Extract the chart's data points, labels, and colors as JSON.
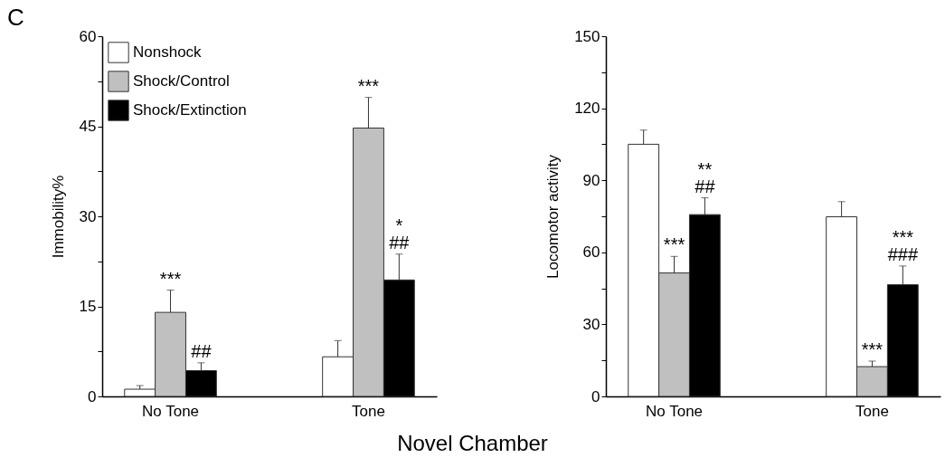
{
  "chart_data": [
    {
      "type": "bar",
      "xlabel": "Novel Chamber",
      "ylabel": "Immobility%",
      "categories": [
        "No Tone",
        "Tone"
      ],
      "ylim": [
        0,
        60
      ],
      "yticks": [
        0,
        {
          "value": 7.5,
          "label": null
        },
        15,
        {
          "value": 22.5,
          "label": null
        },
        30,
        {
          "value": 37.5,
          "label": null
        },
        45,
        {
          "value": 52.5,
          "label": null
        },
        60
      ],
      "legend": "top left",
      "series": [
        {
          "name": "Nonshock",
          "color": "#ffffff",
          "values": [
            1.2,
            6.6
          ],
          "errors": [
            0.6,
            2.7
          ]
        },
        {
          "name": "Shock/Control",
          "color": "#c0c0c0",
          "values": [
            14.0,
            44.7
          ],
          "errors": [
            3.7,
            5.1
          ],
          "value_labels": [
            "***",
            "***"
          ]
        },
        {
          "name": "Shock/Extinction",
          "color": "#000000",
          "values": [
            4.3,
            19.4
          ],
          "errors": [
            1.3,
            4.3
          ],
          "value_labels": [
            "##",
            "*\n##"
          ]
        }
      ],
      "annotations": [
        "C"
      ]
    },
    {
      "type": "bar",
      "ylabel": "Locomotor activity",
      "categories": [
        "No Tone",
        "Tone"
      ],
      "ylim": [
        0,
        150
      ],
      "yticks": [
        0,
        {
          "value": 15,
          "label": null
        },
        30,
        {
          "value": 45,
          "label": null
        },
        60,
        {
          "value": 75,
          "label": null
        },
        90,
        {
          "value": 105,
          "label": null
        },
        120,
        {
          "value": 135,
          "label": null
        },
        150
      ],
      "series": [
        {
          "color": "#ffffff",
          "values": [
            105.0,
            74.8
          ],
          "errors": [
            5.9,
            6.3
          ]
        },
        {
          "color": "#c0c0c0",
          "values": [
            51.4,
            12.4
          ],
          "errors": [
            6.9,
            2.3
          ],
          "value_labels": [
            "***",
            "***"
          ]
        },
        {
          "color": "#000000",
          "values": [
            75.7,
            46.5
          ],
          "errors": [
            7.0,
            7.8
          ],
          "value_labels": [
            "**\n##",
            "***\n###"
          ]
        }
      ]
    }
  ]
}
